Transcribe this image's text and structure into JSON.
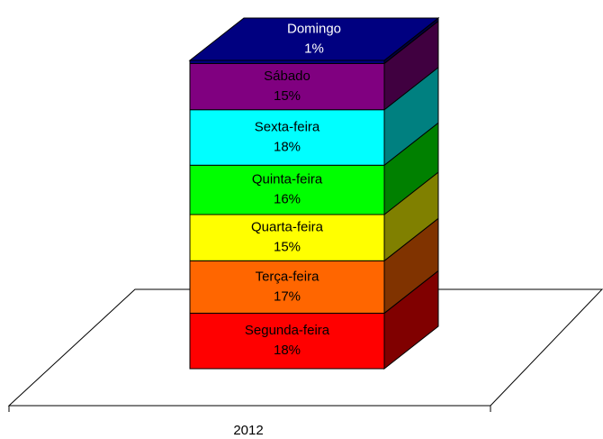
{
  "chart_data": {
    "type": "bar",
    "stacked": true,
    "categories": [
      "2012"
    ],
    "series": [
      {
        "name": "Segunda-feira",
        "color": "#ff0000",
        "values": [
          18
        ],
        "value_labels": [
          "18%"
        ]
      },
      {
        "name": "Terça-feira",
        "color": "#ff6600",
        "values": [
          17
        ],
        "value_labels": [
          "17%"
        ]
      },
      {
        "name": "Quarta-feira",
        "color": "#ffff00",
        "values": [
          15
        ],
        "value_labels": [
          "15%"
        ]
      },
      {
        "name": "Quinta-feira",
        "color": "#00ff00",
        "values": [
          16
        ],
        "value_labels": [
          "16%"
        ]
      },
      {
        "name": "Sexta-feira",
        "color": "#00ffff",
        "values": [
          18
        ],
        "value_labels": [
          "18%"
        ]
      },
      {
        "name": "Sábado",
        "color": "#800080",
        "values": [
          15
        ],
        "value_labels": [
          "15%"
        ]
      },
      {
        "name": "Domingo",
        "color": "#000080",
        "values": [
          1
        ],
        "value_labels": [
          "1%"
        ]
      }
    ]
  }
}
